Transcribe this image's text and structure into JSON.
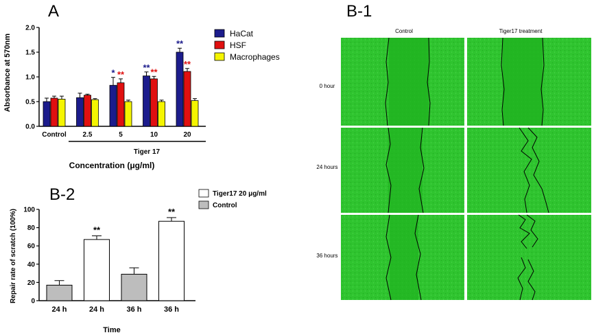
{
  "chart_data": [
    {
      "panel": "A",
      "type": "bar",
      "ylabel": "Absorbance at 570nm",
      "xlabel": "Concentration (μg/ml)",
      "group_label": "Tiger 17",
      "categories": [
        "Control",
        "2.5",
        "5",
        "10",
        "20"
      ],
      "ylim": [
        0,
        2.0
      ],
      "yticks": [
        "0.0",
        "0.5",
        "1.0",
        "1.5",
        "2.0"
      ],
      "legend_position": "top-right",
      "series": [
        {
          "name": "HaCat",
          "color": "#1c1c8c",
          "values": [
            0.5,
            0.58,
            0.83,
            1.02,
            1.5
          ],
          "errors": [
            0.07,
            0.09,
            0.16,
            0.08,
            0.08
          ],
          "sig": [
            "",
            "",
            "*",
            "**",
            "**"
          ],
          "sig_color": "#1c1c8c"
        },
        {
          "name": "HSF",
          "color": "#e01010",
          "values": [
            0.57,
            0.63,
            0.88,
            0.96,
            1.11
          ],
          "errors": [
            0.04,
            0.02,
            0.08,
            0.05,
            0.06
          ],
          "sig": [
            "",
            "",
            "**",
            "**",
            "**"
          ],
          "sig_color": "#e01010"
        },
        {
          "name": "Macrophages",
          "color": "#f5f500",
          "values": [
            0.55,
            0.54,
            0.5,
            0.5,
            0.52
          ],
          "errors": [
            0.06,
            0.02,
            0.03,
            0.03,
            0.04
          ],
          "sig": [
            "",
            "",
            "",
            "",
            ""
          ],
          "sig_color": "#000000"
        }
      ]
    },
    {
      "panel": "B-2",
      "type": "bar",
      "ylabel": "Repair rate of scratch (100%)",
      "xlabel": "Time",
      "categories": [
        "24 h",
        "24 h",
        "36 h",
        "36 h"
      ],
      "ylim": [
        0,
        100
      ],
      "yticks": [
        "0",
        "20",
        "40",
        "60",
        "80",
        "100"
      ],
      "legend_position": "top-right",
      "legend": [
        {
          "name": "Tiger17 20 μg/ml",
          "color": "#ffffff"
        },
        {
          "name": "Control",
          "color": "#bdbdbd"
        }
      ],
      "bars": [
        {
          "value": 17,
          "error": 5,
          "color": "#bdbdbd",
          "sig": ""
        },
        {
          "value": 67,
          "error": 4,
          "color": "#ffffff",
          "sig": "**"
        },
        {
          "value": 29,
          "error": 7,
          "color": "#bdbdbd",
          "sig": ""
        },
        {
          "value": 87,
          "error": 4,
          "color": "#ffffff",
          "sig": "**"
        }
      ]
    }
  ],
  "panel_b1": {
    "title": "B-1",
    "columns": [
      "Control",
      "Tiger17 treatment"
    ],
    "rows": [
      "0 hour",
      "24 hours",
      "36 hours"
    ]
  }
}
